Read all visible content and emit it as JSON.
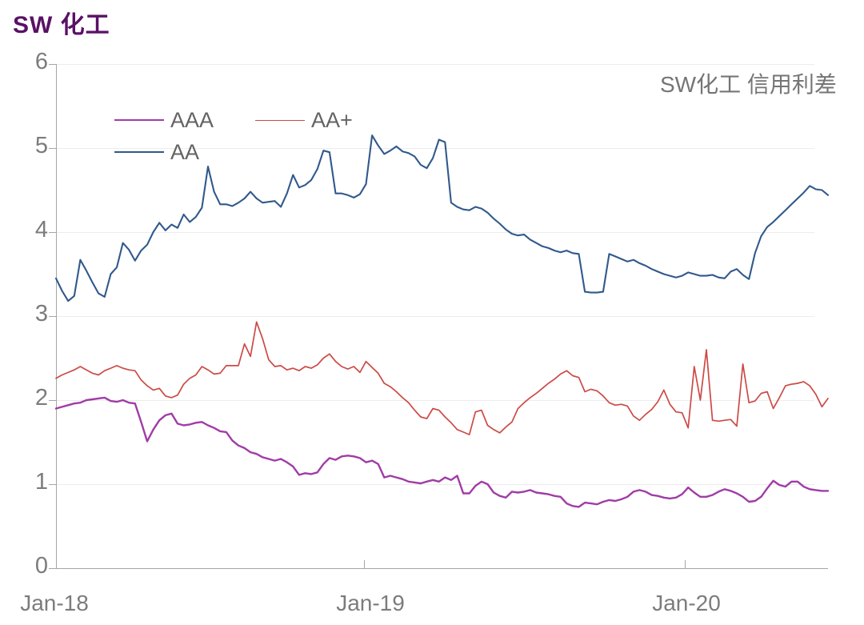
{
  "page_title": "SW 化工",
  "chart": {
    "title": "SW化工 信用利差",
    "y_ticks": [
      "6",
      "5",
      "4",
      "3",
      "2",
      "1",
      "0"
    ],
    "x_ticks": [
      "Jan-18",
      "Jan-19",
      "Jan-20"
    ]
  },
  "chart_data": {
    "type": "line",
    "title": "SW化工 信用利差",
    "xlabel": "",
    "ylabel": "",
    "ylim": [
      0,
      6
    ],
    "y_tick_labels": [
      0,
      1,
      2,
      3,
      4,
      5,
      6
    ],
    "x_tick_labels": [
      "Jan-18",
      "Jan-19",
      "Jan-20"
    ],
    "x_unit": "weekly observations from Jan-2018 to mid-2020 (128 points)",
    "grid": "horizontal-light",
    "legend_position": "top-left, two rows",
    "series": [
      {
        "name": "AAA",
        "color": "#a03ca6",
        "width": 2.4,
        "values": [
          1.9,
          1.92,
          1.94,
          1.96,
          1.97,
          2.0,
          2.01,
          2.02,
          2.03,
          1.99,
          1.98,
          2.0,
          1.97,
          1.96,
          1.74,
          1.51,
          1.65,
          1.76,
          1.82,
          1.84,
          1.72,
          1.7,
          1.71,
          1.73,
          1.74,
          1.7,
          1.67,
          1.63,
          1.62,
          1.52,
          1.46,
          1.43,
          1.38,
          1.36,
          1.32,
          1.3,
          1.28,
          1.3,
          1.26,
          1.21,
          1.11,
          1.13,
          1.12,
          1.14,
          1.24,
          1.31,
          1.29,
          1.33,
          1.34,
          1.33,
          1.31,
          1.26,
          1.28,
          1.24,
          1.08,
          1.1,
          1.08,
          1.06,
          1.03,
          1.02,
          1.01,
          1.03,
          1.05,
          1.03,
          1.08,
          1.05,
          1.1,
          0.89,
          0.89,
          0.98,
          1.03,
          1.0,
          0.9,
          0.86,
          0.84,
          0.91,
          0.9,
          0.91,
          0.93,
          0.9,
          0.89,
          0.88,
          0.86,
          0.85,
          0.77,
          0.74,
          0.73,
          0.78,
          0.77,
          0.76,
          0.79,
          0.81,
          0.8,
          0.82,
          0.85,
          0.91,
          0.93,
          0.91,
          0.87,
          0.86,
          0.84,
          0.83,
          0.84,
          0.88,
          0.96,
          0.9,
          0.85,
          0.85,
          0.87,
          0.91,
          0.94,
          0.92,
          0.89,
          0.85,
          0.79,
          0.8,
          0.85,
          0.95,
          1.04,
          0.99,
          0.97,
          1.03,
          1.03,
          0.97,
          0.94,
          0.93,
          0.92,
          0.92
        ]
      },
      {
        "name": "AA+",
        "color": "#cc4a46",
        "width": 1.7,
        "values": [
          2.26,
          2.3,
          2.33,
          2.36,
          2.4,
          2.36,
          2.32,
          2.3,
          2.35,
          2.38,
          2.41,
          2.38,
          2.36,
          2.35,
          2.24,
          2.17,
          2.12,
          2.14,
          2.05,
          2.03,
          2.06,
          2.19,
          2.26,
          2.3,
          2.4,
          2.36,
          2.31,
          2.32,
          2.41,
          2.41,
          2.41,
          2.67,
          2.52,
          2.93,
          2.73,
          2.48,
          2.4,
          2.41,
          2.36,
          2.38,
          2.35,
          2.4,
          2.38,
          2.42,
          2.5,
          2.55,
          2.46,
          2.4,
          2.37,
          2.4,
          2.33,
          2.46,
          2.39,
          2.32,
          2.2,
          2.16,
          2.1,
          2.03,
          1.97,
          1.88,
          1.8,
          1.78,
          1.9,
          1.88,
          1.8,
          1.73,
          1.65,
          1.62,
          1.59,
          1.86,
          1.88,
          1.7,
          1.65,
          1.61,
          1.68,
          1.74,
          1.9,
          1.97,
          2.03,
          2.08,
          2.14,
          2.2,
          2.25,
          2.31,
          2.35,
          2.29,
          2.27,
          2.1,
          2.13,
          2.11,
          2.05,
          1.97,
          1.94,
          1.95,
          1.93,
          1.81,
          1.76,
          1.83,
          1.89,
          1.98,
          2.12,
          1.95,
          1.86,
          1.85,
          1.67,
          2.4,
          2.0,
          2.6,
          1.76,
          1.75,
          1.76,
          1.77,
          1.69,
          2.43,
          1.97,
          1.99,
          2.08,
          2.1,
          1.9,
          2.03,
          2.17,
          2.19,
          2.2,
          2.22,
          2.17,
          2.07,
          1.92,
          2.02
        ]
      },
      {
        "name": "AA",
        "color": "#31598c",
        "width": 2.1,
        "values": [
          3.45,
          3.3,
          3.18,
          3.24,
          3.67,
          3.54,
          3.4,
          3.27,
          3.23,
          3.5,
          3.58,
          3.87,
          3.79,
          3.66,
          3.78,
          3.85,
          4.0,
          4.11,
          4.02,
          4.09,
          4.05,
          4.21,
          4.12,
          4.18,
          4.29,
          4.78,
          4.48,
          4.33,
          4.33,
          4.31,
          4.35,
          4.4,
          4.48,
          4.4,
          4.35,
          4.36,
          4.37,
          4.3,
          4.46,
          4.68,
          4.53,
          4.56,
          4.62,
          4.75,
          4.97,
          4.95,
          4.46,
          4.46,
          4.44,
          4.41,
          4.45,
          4.57,
          5.15,
          5.03,
          4.93,
          4.97,
          5.02,
          4.96,
          4.94,
          4.9,
          4.8,
          4.76,
          4.88,
          5.1,
          5.07,
          4.35,
          4.3,
          4.27,
          4.26,
          4.3,
          4.28,
          4.23,
          4.16,
          4.1,
          4.03,
          3.98,
          3.96,
          3.97,
          3.91,
          3.87,
          3.83,
          3.81,
          3.78,
          3.76,
          3.78,
          3.75,
          3.74,
          3.29,
          3.28,
          3.28,
          3.29,
          3.74,
          3.71,
          3.68,
          3.65,
          3.67,
          3.63,
          3.6,
          3.56,
          3.53,
          3.5,
          3.48,
          3.46,
          3.48,
          3.52,
          3.5,
          3.48,
          3.48,
          3.49,
          3.46,
          3.45,
          3.53,
          3.56,
          3.49,
          3.44,
          3.75,
          3.95,
          4.06,
          4.12,
          4.19,
          4.26,
          4.33,
          4.4,
          4.47,
          4.55,
          4.51,
          4.5,
          4.44
        ]
      }
    ]
  }
}
